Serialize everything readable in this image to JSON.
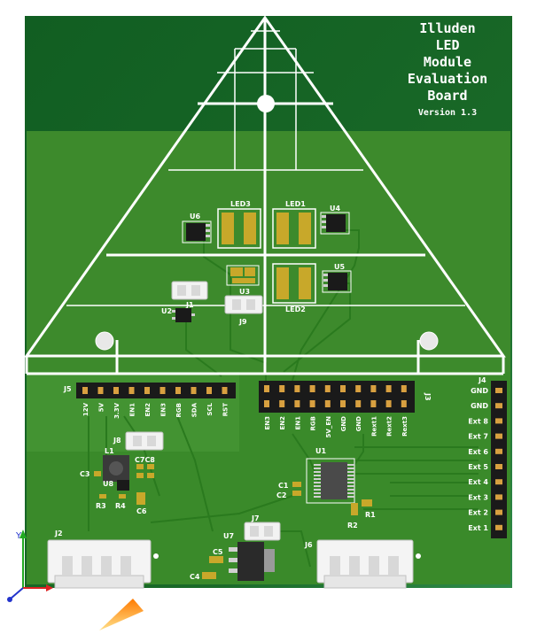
{
  "board": {
    "title_lines": [
      "Illuden",
      "LED",
      "Module",
      "Evaluation",
      "Board"
    ],
    "version": "Version 1.3",
    "colors": {
      "pcb_dark": "#0e5a1e",
      "pcb_light": "#3a8a2a",
      "silkscreen": "#ffffff",
      "pad_gold": "#c8a82a",
      "header_black": "#1a1a1a",
      "header_pin_gold": "#d8a040"
    }
  },
  "components": {
    "led3": "LED3",
    "led1": "LED1",
    "led2": "LED2",
    "u6": "U6",
    "u4": "U4",
    "u5": "U5",
    "u3": "U3",
    "u2": "U2",
    "j1": "J1",
    "j9": "J9",
    "j5": "J5",
    "j3": "J3",
    "j4": "J4",
    "j8": "J8",
    "l1": "L1",
    "c3": "C3",
    "u8": "U8",
    "c7c8": "C7C8",
    "r3": "R3",
    "r4": "R4",
    "c6": "C6",
    "u1": "U1",
    "c1": "C1",
    "c2": "C2",
    "r1": "R1",
    "r2": "R2",
    "j2": "J2",
    "j7": "J7",
    "u7": "U7",
    "c5": "C5",
    "c4": "C4",
    "j6": "J6"
  },
  "j5_pins": [
    "12V",
    "5V",
    "3.3V",
    "EN1",
    "EN2",
    "EN3",
    "RGB",
    "SDA",
    "SCL",
    "RST"
  ],
  "j3_pins": [
    "EN3",
    "EN2",
    "EN1",
    "RGB",
    "5V_EN",
    "GND",
    "GND",
    "Rext1",
    "Rext2",
    "Rext3"
  ],
  "j4_pins": [
    "GND",
    "GND",
    "Ext 8",
    "Ext 7",
    "Ext 6",
    "Ext 5",
    "Ext 4",
    "Ext 3",
    "Ext 2",
    "Ext 1"
  ],
  "axis": {
    "y": "Y"
  }
}
